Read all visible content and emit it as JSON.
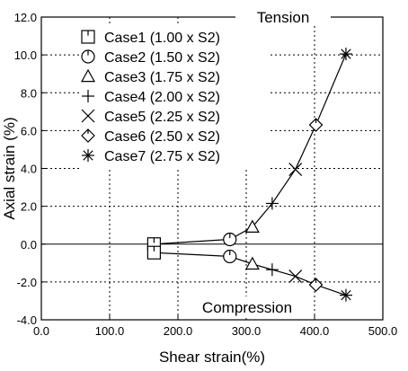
{
  "chart_data": {
    "type": "scatter",
    "xlabel": "Shear strain(%)",
    "ylabel": "Axial strain (%)",
    "xlim": [
      0,
      500
    ],
    "ylim": [
      -4,
      12
    ],
    "xticks": [
      "0.0",
      "100.0",
      "200.0",
      "300.0",
      "400.0",
      "500.0"
    ],
    "yticks": [
      "-4.0",
      "-2.0",
      "0.0",
      "2.0",
      "4.0",
      "6.0",
      "8.0",
      "10.0",
      "12.0"
    ],
    "grid": true,
    "legend_position": "top-left",
    "annotations": [
      "Tension",
      "Compression"
    ],
    "series": [
      {
        "name": "Case1 (1.00 x S2)",
        "marker": "square",
        "x": [
          165,
          165
        ],
        "y": [
          0.0,
          -0.45
        ]
      },
      {
        "name": "Case2 (1.50 x S2)",
        "marker": "circle",
        "x": [
          276,
          276
        ],
        "y": [
          0.25,
          -0.65
        ]
      },
      {
        "name": "Case3 (1.75 x S2)",
        "marker": "triangle",
        "x": [
          309,
          309
        ],
        "y": [
          0.9,
          -1.05
        ]
      },
      {
        "name": "Case4 (2.00 x S2)",
        "marker": "plus",
        "x": [
          338,
          338
        ],
        "y": [
          2.15,
          -1.35
        ]
      },
      {
        "name": "Case5 (2.25 x S2)",
        "marker": "cross",
        "x": [
          372,
          372
        ],
        "y": [
          3.95,
          -1.7
        ]
      },
      {
        "name": "Case6 (2.50 x S2)",
        "marker": "diamond",
        "x": [
          402,
          402
        ],
        "y": [
          6.3,
          -2.15
        ]
      },
      {
        "name": "Case7 (2.75 x S2)",
        "marker": "asterisk",
        "x": [
          446,
          446
        ],
        "y": [
          10.05,
          -2.7
        ]
      }
    ],
    "connecting_lines": [
      {
        "x": [
          165,
          276,
          309,
          338,
          372,
          402,
          446
        ],
        "y": [
          0.0,
          0.25,
          0.9,
          2.15,
          3.95,
          6.3,
          10.05
        ]
      },
      {
        "x": [
          165,
          276,
          309,
          338,
          372,
          402,
          446
        ],
        "y": [
          -0.45,
          -0.65,
          -1.05,
          -1.35,
          -1.7,
          -2.15,
          -2.7
        ]
      }
    ]
  }
}
